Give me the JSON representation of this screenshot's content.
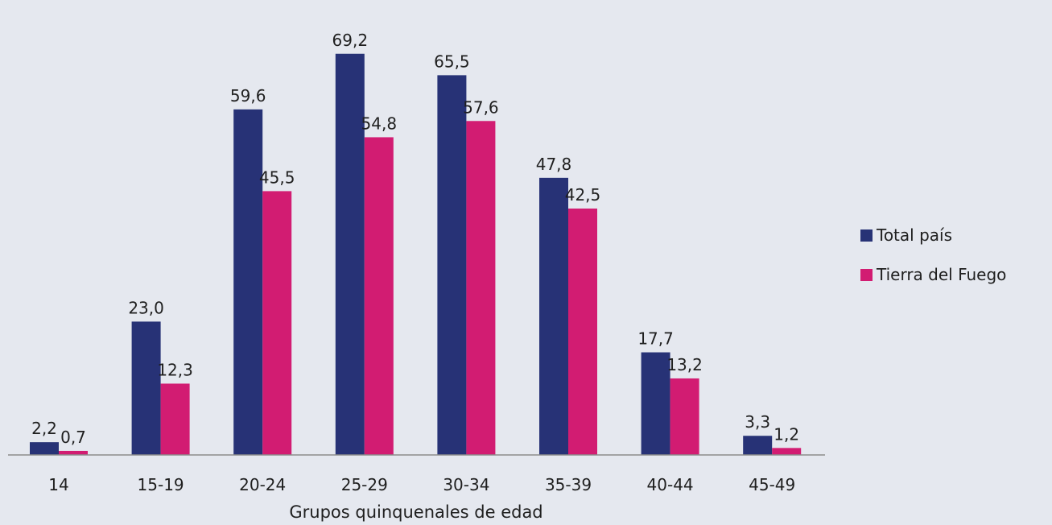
{
  "chart_data": {
    "type": "bar",
    "xlabel": "Grupos quinquenales de edad",
    "ylabel": "",
    "categories": [
      "14",
      "15-19",
      "20-24",
      "25-29",
      "30-34",
      "35-39",
      "40-44",
      "45-49"
    ],
    "series": [
      {
        "name": "Total país",
        "color": "#273276",
        "values": [
          2.2,
          23.0,
          59.6,
          69.2,
          65.5,
          47.8,
          17.7,
          3.3
        ],
        "labels": [
          "2,2",
          "23,0",
          "59,6",
          "69,2",
          "65,5",
          "47,8",
          "17,7",
          "3,3"
        ]
      },
      {
        "name": "Tierra del Fuego",
        "color": "#d21c72",
        "values": [
          0.7,
          12.3,
          45.5,
          54.8,
          57.6,
          42.5,
          13.2,
          1.2
        ],
        "labels": [
          "0,7",
          "12,3",
          "45,5",
          "54,8",
          "57,6",
          "42,5",
          "13,2",
          "1,2"
        ]
      }
    ],
    "ylim": [
      0,
      74
    ],
    "grid": false,
    "legend_position": "right"
  }
}
